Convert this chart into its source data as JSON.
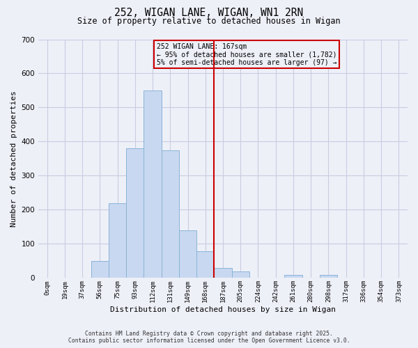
{
  "title": "252, WIGAN LANE, WIGAN, WN1 2RN",
  "subtitle": "Size of property relative to detached houses in Wigan",
  "xlabel": "Distribution of detached houses by size in Wigan",
  "ylabel": "Number of detached properties",
  "bar_labels": [
    "0sqm",
    "19sqm",
    "37sqm",
    "56sqm",
    "75sqm",
    "93sqm",
    "112sqm",
    "131sqm",
    "149sqm",
    "168sqm",
    "187sqm",
    "205sqm",
    "224sqm",
    "242sqm",
    "261sqm",
    "280sqm",
    "298sqm",
    "317sqm",
    "336sqm",
    "354sqm",
    "373sqm"
  ],
  "bar_values": [
    0,
    0,
    0,
    50,
    220,
    380,
    550,
    375,
    140,
    78,
    30,
    20,
    0,
    0,
    8,
    0,
    8,
    0,
    0,
    0,
    0
  ],
  "bar_color": "#c8d8f0",
  "bar_edge_color": "#8ab4d8",
  "vline_x": 9.5,
  "vline_color": "#cc0000",
  "ylim": [
    0,
    700
  ],
  "yticks": [
    0,
    100,
    200,
    300,
    400,
    500,
    600,
    700
  ],
  "annotation_title": "252 WIGAN LANE: 167sqm",
  "annotation_line1": "← 95% of detached houses are smaller (1,782)",
  "annotation_line2": "5% of semi-detached houses are larger (97) →",
  "annotation_box_color": "#cc0000",
  "footer1": "Contains HM Land Registry data © Crown copyright and database right 2025.",
  "footer2": "Contains public sector information licensed under the Open Government Licence v3.0.",
  "background_color": "#eef0f8",
  "grid_color": "#c8cce0"
}
